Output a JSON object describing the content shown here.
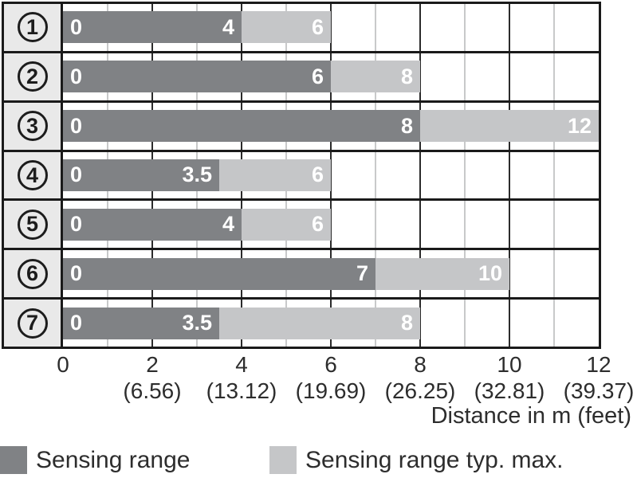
{
  "chart_data": {
    "type": "bar",
    "orientation": "horizontal",
    "xlabel": "Distance in m (feet)",
    "xlim": [
      0,
      12
    ],
    "grid": "on",
    "legend_position": "bottom",
    "x_ticks": [
      {
        "m": "0",
        "feet": ""
      },
      {
        "m": "2",
        "feet": "(6.56)"
      },
      {
        "m": "4",
        "feet": "(13.12)"
      },
      {
        "m": "6",
        "feet": "(19.69)"
      },
      {
        "m": "8",
        "feet": "(26.25)"
      },
      {
        "m": "10",
        "feet": "(32.81)"
      },
      {
        "m": "12",
        "feet": "(39.37)"
      }
    ],
    "minor_tick_step": 1,
    "categories": [
      "1",
      "2",
      "3",
      "4",
      "5",
      "6",
      "7"
    ],
    "series": [
      {
        "name": "Sensing range",
        "color": "#808285",
        "values": [
          4,
          6,
          8,
          3.5,
          4,
          7,
          3.5
        ]
      },
      {
        "name": "Sensing range typ. max.",
        "color": "#c5c6c8",
        "values": [
          6,
          8,
          12,
          6,
          6,
          10,
          8
        ]
      }
    ],
    "rows": [
      {
        "id": "1",
        "start_label": "0",
        "range_end_label": "4",
        "max_end_label": "6",
        "sensing_range": 4,
        "typ_max": 6
      },
      {
        "id": "2",
        "start_label": "0",
        "range_end_label": "6",
        "max_end_label": "8",
        "sensing_range": 6,
        "typ_max": 8
      },
      {
        "id": "3",
        "start_label": "0",
        "range_end_label": "8",
        "max_end_label": "12",
        "sensing_range": 8,
        "typ_max": 12
      },
      {
        "id": "4",
        "start_label": "0",
        "range_end_label": "3.5",
        "max_end_label": "6",
        "sensing_range": 3.5,
        "typ_max": 6
      },
      {
        "id": "5",
        "start_label": "0",
        "range_end_label": "4",
        "max_end_label": "6",
        "sensing_range": 4,
        "typ_max": 6
      },
      {
        "id": "6",
        "start_label": "0",
        "range_end_label": "7",
        "max_end_label": "10",
        "sensing_range": 7,
        "typ_max": 10
      },
      {
        "id": "7",
        "start_label": "0",
        "range_end_label": "3.5",
        "max_end_label": "8",
        "sensing_range": 3.5,
        "typ_max": 8
      }
    ]
  },
  "colors": {
    "sensing_range": "#808285",
    "typ_max": "#c5c6c8",
    "border": "#1a1a1a",
    "grid_major": "#2b2b2b",
    "grid_minor": "#c8c9ca",
    "row_header_bg": "#e9e9e9",
    "text": "#2d2d2d"
  },
  "legend": {
    "item1_label": "Sensing range",
    "item2_label": "Sensing range typ. max."
  },
  "axis": {
    "title": "Distance in m (feet)"
  }
}
